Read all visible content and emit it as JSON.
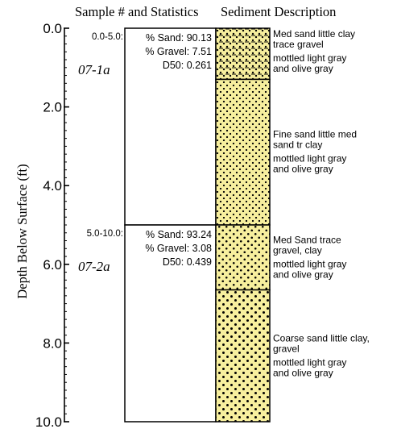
{
  "headers": {
    "left": "Sample # and Statistics",
    "right": "Sediment Description"
  },
  "axis": {
    "label": "Depth Below Surface (ft)",
    "min": 0,
    "max": 10,
    "major_ticks": [
      {
        "value": 0,
        "label": "0.0"
      },
      {
        "value": 2,
        "label": "2.0"
      },
      {
        "value": 4,
        "label": "4.0"
      },
      {
        "value": 6,
        "label": "6.0"
      },
      {
        "value": 8,
        "label": "8.0"
      },
      {
        "value": 10,
        "label": "10.0"
      }
    ],
    "minor_tick_step": 0.2
  },
  "samples": [
    {
      "id": "07-1a",
      "interval_label": "0.0-5.0:",
      "from": 0,
      "to": 5,
      "stats": [
        "% Sand: 90.13",
        "% Gravel: 7.51",
        "D50: 0.261"
      ]
    },
    {
      "id": "07-2a",
      "interval_label": "5.0-10.0:",
      "from": 5,
      "to": 10,
      "stats": [
        "% Sand: 93.24",
        "% Gravel: 3.08",
        "D50: 0.439"
      ]
    }
  ],
  "layers": [
    {
      "from": 0,
      "to": 1.3,
      "pattern": "sand-gravel",
      "description": [
        "Med sand little clay",
        "trace gravel",
        "mottled light gray",
        " and olive gray"
      ]
    },
    {
      "from": 1.3,
      "to": 5,
      "pattern": "fine-sand",
      "description": [
        "Fine sand little med",
        "sand tr clay",
        "mottled light gray",
        " and olive gray"
      ]
    },
    {
      "from": 5,
      "to": 6.65,
      "pattern": "med-sand",
      "description": [
        "Med Sand trace",
        "gravel, clay",
        "mottled light gray",
        "and olive gray"
      ]
    },
    {
      "from": 6.65,
      "to": 10,
      "pattern": "coarse-sand",
      "description": [
        "Coarse sand little clay,",
        "gravel",
        "mottled light gray",
        " and olive gray"
      ]
    }
  ],
  "colors": {
    "sand_fill": "#f7ef9e",
    "dot": "#000000",
    "line": "#000000"
  }
}
